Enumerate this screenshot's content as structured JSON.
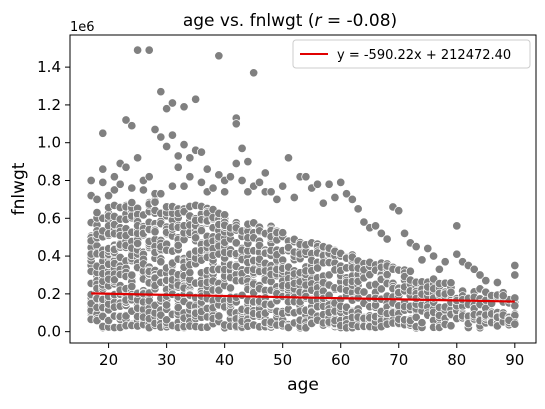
{
  "chart_data": {
    "type": "scatter",
    "title_prefix": "age vs. fnlwgt (",
    "title_r_symbol": "r",
    "title_suffix": " = -0.08)",
    "xlabel": "age",
    "ylabel": "fnlwgt",
    "y_multiplier_label": "1e6",
    "xlim": [
      13.35,
      93.65
    ],
    "ylim": [
      -0.06,
      1.57
    ],
    "x_ticks": [
      20,
      30,
      40,
      50,
      60,
      70,
      80,
      90
    ],
    "x_tick_labels": [
      "20",
      "30",
      "40",
      "50",
      "60",
      "70",
      "80",
      "90"
    ],
    "y_ticks": [
      0.0,
      0.2,
      0.4,
      0.6,
      0.8,
      1.0,
      1.2,
      1.4
    ],
    "y_tick_labels": [
      "0.0",
      "0.2",
      "0.4",
      "0.6",
      "0.8",
      "1.0",
      "1.2",
      "1.4"
    ],
    "grid": false,
    "legend_position": "top-right",
    "point_color": "#808080",
    "line_color": "#e00000",
    "regression": {
      "label": "y = -590.22x + 212472.40",
      "slope": -590.22,
      "intercept": 212472.4,
      "x_range": [
        17,
        90
      ]
    },
    "band": {
      "x_start": 17,
      "x_end": 90,
      "low": [
        0.02,
        0.02,
        0.02,
        0.02,
        0.02,
        0.02,
        0.02,
        0.02,
        0.02,
        0.02,
        0.02,
        0.02,
        0.02,
        0.02,
        0.02,
        0.02,
        0.02,
        0.02,
        0.02,
        0.02,
        0.02,
        0.02,
        0.02,
        0.02,
        0.02,
        0.02,
        0.02,
        0.02,
        0.02,
        0.02,
        0.02,
        0.02,
        0.02,
        0.02,
        0.02,
        0.02,
        0.02,
        0.02,
        0.02,
        0.02,
        0.02,
        0.02,
        0.02,
        0.02,
        0.02,
        0.02,
        0.02,
        0.02,
        0.02,
        0.02,
        0.02,
        0.02,
        0.02,
        0.02,
        0.02,
        0.02,
        0.02,
        0.02,
        0.02,
        0.02,
        0.02,
        0.02,
        0.02,
        0.02,
        0.02,
        0.02,
        0.02,
        0.02,
        0.02,
        0.03,
        0.03,
        0.03,
        0.03,
        0.03
      ],
      "high": [
        0.58,
        0.62,
        0.64,
        0.66,
        0.67,
        0.68,
        0.68,
        0.69,
        0.69,
        0.69,
        0.69,
        0.7,
        0.69,
        0.69,
        0.69,
        0.68,
        0.68,
        0.68,
        0.67,
        0.67,
        0.66,
        0.66,
        0.65,
        0.64,
        0.63,
        0.62,
        0.61,
        0.6,
        0.59,
        0.58,
        0.57,
        0.56,
        0.55,
        0.54,
        0.53,
        0.52,
        0.51,
        0.5,
        0.49,
        0.48,
        0.47,
        0.46,
        0.45,
        0.44,
        0.43,
        0.42,
        0.41,
        0.4,
        0.39,
        0.38,
        0.37,
        0.36,
        0.35,
        0.34,
        0.33,
        0.32,
        0.31,
        0.3,
        0.29,
        0.28,
        0.27,
        0.26,
        0.26,
        0.25,
        0.24,
        0.24,
        0.23,
        0.23,
        0.22,
        0.22,
        0.21,
        0.21,
        0.2,
        0.2
      ]
    },
    "outliers": [
      [
        17,
        0.8
      ],
      [
        17,
        0.72
      ],
      [
        18,
        0.7
      ],
      [
        18,
        0.63
      ],
      [
        19,
        1.05
      ],
      [
        19,
        0.79
      ],
      [
        19,
        0.86
      ],
      [
        20,
        0.72
      ],
      [
        21,
        0.75
      ],
      [
        21,
        0.82
      ],
      [
        22,
        0.89
      ],
      [
        22,
        0.78
      ],
      [
        23,
        0.87
      ],
      [
        23,
        1.12
      ],
      [
        24,
        1.09
      ],
      [
        24,
        0.76
      ],
      [
        25,
        1.49
      ],
      [
        25,
        0.92
      ],
      [
        26,
        0.8
      ],
      [
        26,
        0.75
      ],
      [
        27,
        1.49
      ],
      [
        27,
        0.82
      ],
      [
        28,
        0.73
      ],
      [
        28,
        1.07
      ],
      [
        29,
        0.73
      ],
      [
        29,
        1.27
      ],
      [
        29,
        1.03
      ],
      [
        30,
        0.98
      ],
      [
        30,
        1.18
      ],
      [
        31,
        1.21
      ],
      [
        31,
        1.04
      ],
      [
        31,
        0.77
      ],
      [
        32,
        0.93
      ],
      [
        32,
        0.87
      ],
      [
        33,
        1.19
      ],
      [
        33,
        0.99
      ],
      [
        33,
        0.77
      ],
      [
        34,
        0.92
      ],
      [
        34,
        0.82
      ],
      [
        35,
        1.23
      ],
      [
        35,
        0.96
      ],
      [
        36,
        0.95
      ],
      [
        36,
        0.79
      ],
      [
        37,
        0.86
      ],
      [
        37,
        0.74
      ],
      [
        38,
        0.76
      ],
      [
        39,
        1.46
      ],
      [
        39,
        0.83
      ],
      [
        40,
        0.8
      ],
      [
        40,
        0.74
      ],
      [
        41,
        0.82
      ],
      [
        42,
        1.13
      ],
      [
        42,
        1.1
      ],
      [
        42,
        0.89
      ],
      [
        43,
        0.97
      ],
      [
        43,
        0.8
      ],
      [
        44,
        0.9
      ],
      [
        44,
        0.74
      ],
      [
        45,
        1.37
      ],
      [
        45,
        0.77
      ],
      [
        46,
        0.79
      ],
      [
        47,
        0.84
      ],
      [
        47,
        0.74
      ],
      [
        48,
        0.74
      ],
      [
        49,
        0.7
      ],
      [
        50,
        0.77
      ],
      [
        51,
        0.92
      ],
      [
        52,
        0.71
      ],
      [
        53,
        0.82
      ],
      [
        54,
        0.82
      ],
      [
        55,
        0.76
      ],
      [
        56,
        0.78
      ],
      [
        57,
        0.68
      ],
      [
        58,
        0.78
      ],
      [
        59,
        0.71
      ],
      [
        60,
        0.79
      ],
      [
        61,
        0.73
      ],
      [
        62,
        0.7
      ],
      [
        63,
        0.65
      ],
      [
        64,
        0.58
      ],
      [
        65,
        0.55
      ],
      [
        66,
        0.56
      ],
      [
        67,
        0.52
      ],
      [
        68,
        0.49
      ],
      [
        69,
        0.66
      ],
      [
        70,
        0.64
      ],
      [
        71,
        0.52
      ],
      [
        72,
        0.47
      ],
      [
        73,
        0.45
      ],
      [
        74,
        0.38
      ],
      [
        75,
        0.44
      ],
      [
        76,
        0.4
      ],
      [
        77,
        0.33
      ],
      [
        78,
        0.37
      ],
      [
        80,
        0.56
      ],
      [
        80,
        0.41
      ],
      [
        81,
        0.37
      ],
      [
        82,
        0.35
      ],
      [
        83,
        0.33
      ],
      [
        84,
        0.3
      ],
      [
        85,
        0.27
      ],
      [
        87,
        0.26
      ],
      [
        88,
        0.19
      ],
      [
        89,
        0.06
      ],
      [
        90,
        0.35
      ],
      [
        90,
        0.3
      ],
      [
        90,
        0.04
      ]
    ]
  }
}
